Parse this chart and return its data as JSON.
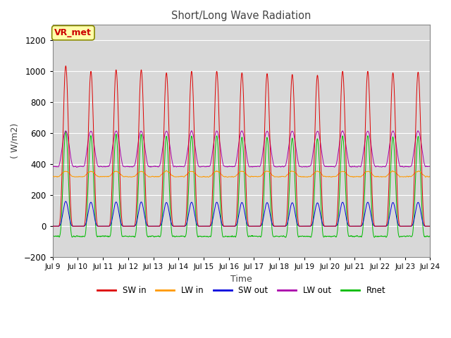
{
  "title": "Short/Long Wave Radiation",
  "xlabel": "Time",
  "ylabel": "( W/m2)",
  "ylim": [
    -200,
    1300
  ],
  "background_color": "#ffffff",
  "plot_bg_color": "#d8d8d8",
  "grid_color": "#ffffff",
  "annotation_text": "VR_met",
  "annotation_box_color": "#ffffaa",
  "annotation_box_edge": "#888800",
  "series": {
    "SW_in": {
      "color": "#dd0000",
      "label": "SW in"
    },
    "LW_in": {
      "color": "#ff9900",
      "label": "LW in"
    },
    "SW_out": {
      "color": "#0000dd",
      "label": "SW out"
    },
    "LW_out": {
      "color": "#aa00aa",
      "label": "LW out"
    },
    "Rnet": {
      "color": "#00bb00",
      "label": "Rnet"
    }
  },
  "legend_colors": [
    "#dd0000",
    "#ff9900",
    "#0000dd",
    "#aa00aa",
    "#00bb00"
  ],
  "legend_labels": [
    "SW in",
    "LW in",
    "SW out",
    "LW out",
    "Rnet"
  ],
  "yticks": [
    -200,
    0,
    200,
    400,
    600,
    800,
    1000,
    1200
  ],
  "xtick_labels": [
    "Jul 9",
    "Jul 10",
    "Jul 11",
    "Jul 12",
    "Jul 13",
    "Jul 14",
    "Jul 15",
    "Jul 16",
    "Jul 17",
    "Jul 18",
    "Jul 19",
    "Jul 20",
    "Jul 21",
    "Jul 22",
    "Jul 23",
    "Jul 24"
  ],
  "n_days": 15,
  "pts_per_day": 144
}
